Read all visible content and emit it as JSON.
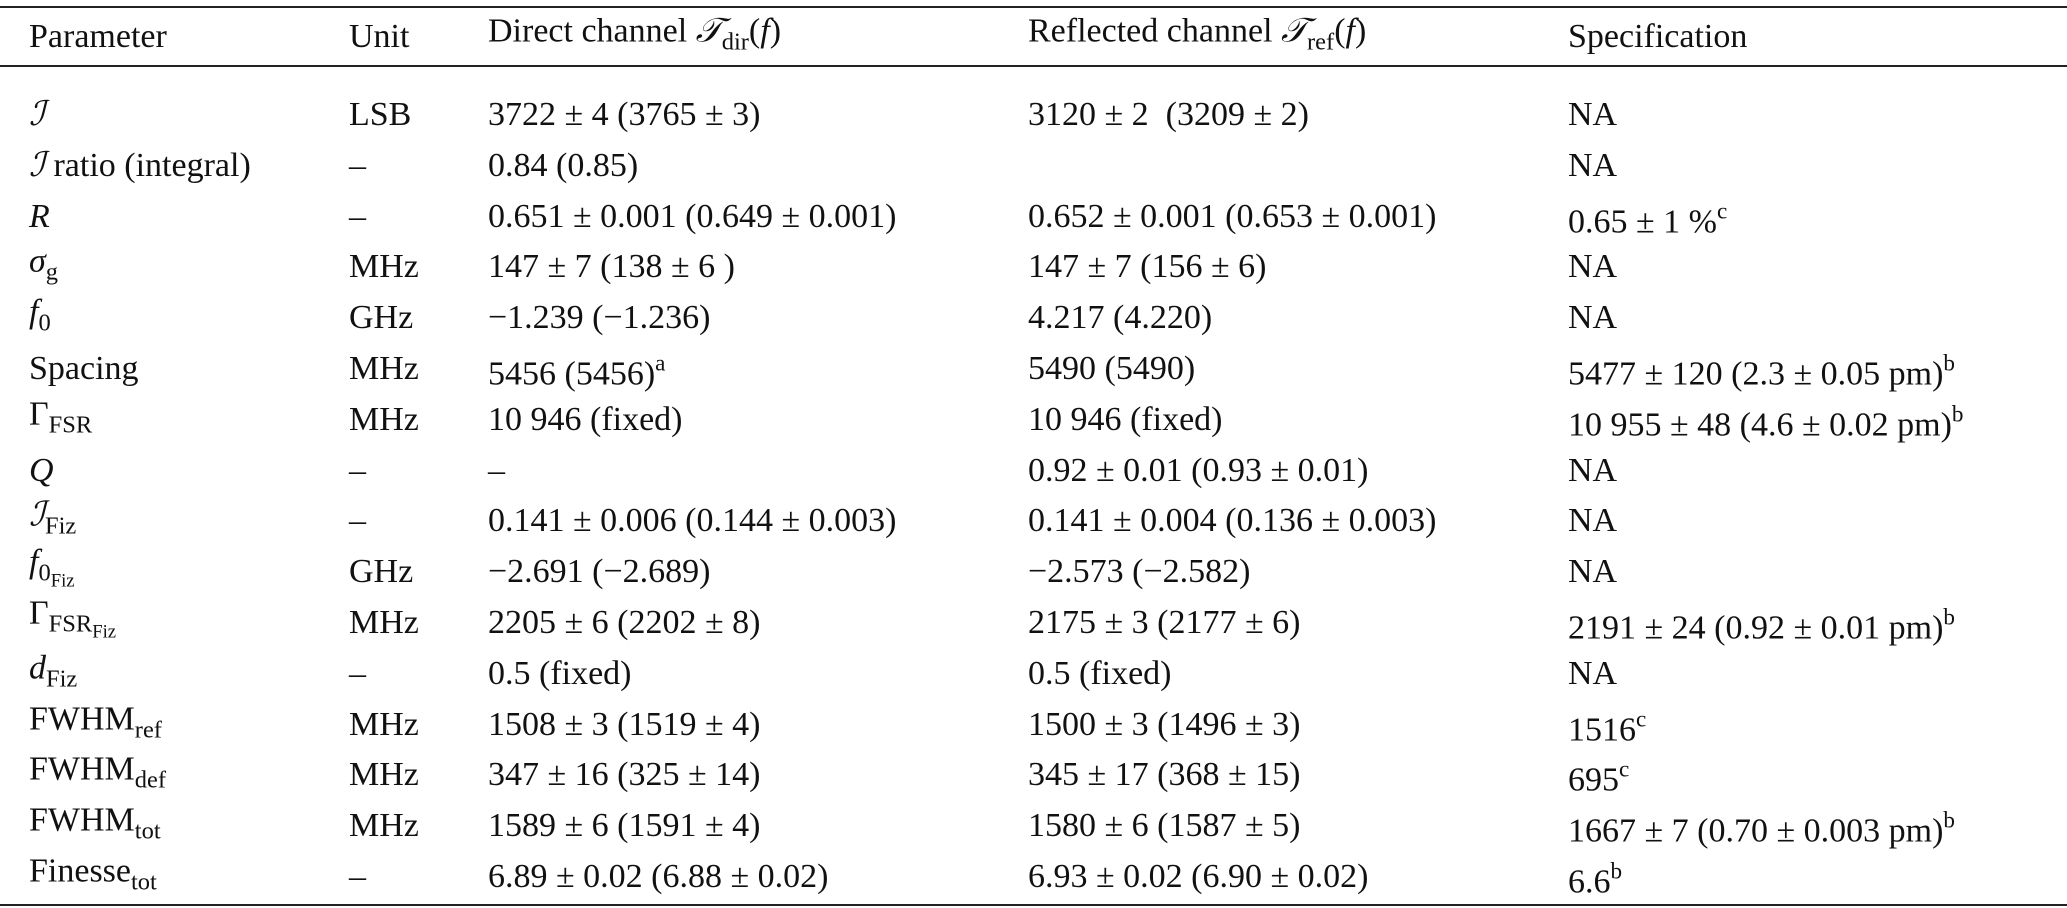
{
  "table": {
    "header": [
      "Parameter",
      "Unit",
      [
        "Direct channel ",
        {
          "i": "𝒯"
        },
        {
          "sub": "dir"
        },
        "(",
        {
          "i": "f"
        },
        ")"
      ],
      [
        "Reflected channel ",
        {
          "i": "𝒯"
        },
        {
          "sub": "ref"
        },
        "(",
        {
          "i": "f"
        },
        ")"
      ],
      "Specification"
    ],
    "rows": [
      [
        [
          {
            "i": "ℐ"
          }
        ],
        "LSB",
        "3722 ± 4 (3765 ± 3)",
        "3120 ± 2  (3209 ± 2)",
        "NA"
      ],
      [
        [
          {
            "i": "ℐ"
          },
          " ratio (integral)"
        ],
        "–",
        "0.84 (0.85)",
        null,
        "NA"
      ],
      [
        [
          {
            "i": "R"
          }
        ],
        "–",
        "0.651 ± 0.001 (0.649 ± 0.001)",
        "0.652 ± 0.001 (0.653 ± 0.001)",
        [
          "0.65 ± 1 %",
          {
            "sup": "c"
          }
        ]
      ],
      [
        [
          {
            "i": "σ"
          },
          {
            "sub": "g"
          }
        ],
        "MHz",
        "147 ± 7 (138 ± 6 )",
        "147 ± 7 (156 ± 6)",
        "NA"
      ],
      [
        [
          {
            "i": "f"
          },
          {
            "sub": "0"
          }
        ],
        "GHz",
        "−1.239 (−1.236)",
        "4.217 (4.220)",
        "NA"
      ],
      [
        "Spacing",
        "MHz",
        [
          "5456 (5456)",
          {
            "sup": "a"
          }
        ],
        "5490 (5490)",
        [
          "5477 ± 120 (2.3 ± 0.05 pm)",
          {
            "sup": "b"
          }
        ]
      ],
      [
        [
          "Γ",
          {
            "sub": "FSR"
          }
        ],
        "MHz",
        "10 946 (fixed)",
        "10 946 (fixed)",
        [
          "10 955 ± 48 (4.6 ± 0.02 pm)",
          {
            "sup": "b"
          }
        ]
      ],
      [
        [
          {
            "i": "Q"
          }
        ],
        "–",
        "–",
        "0.92 ± 0.01 (0.93 ± 0.01)",
        "NA"
      ],
      [
        [
          {
            "i": "ℐ"
          },
          {
            "sub": "Fiz"
          }
        ],
        "–",
        "0.141 ± 0.006 (0.144 ± 0.003)",
        "0.141 ± 0.004 (0.136 ± 0.003)",
        "NA"
      ],
      [
        [
          {
            "i": "f"
          },
          {
            "sub": "0"
          },
          {
            "sub2": "Fiz"
          }
        ],
        "GHz",
        "−2.691 (−2.689)",
        "−2.573 (−2.582)",
        "NA"
      ],
      [
        [
          "Γ",
          {
            "sub": "FSR"
          },
          {
            "sub2": "Fiz"
          }
        ],
        "MHz",
        "2205 ± 6 (2202 ± 8)",
        "2175 ± 3 (2177 ± 6)",
        [
          "2191 ± 24 (0.92 ± 0.01 pm)",
          {
            "sup": "b"
          }
        ]
      ],
      [
        [
          {
            "i": "d"
          },
          {
            "sub": "Fiz"
          }
        ],
        "–",
        "0.5 (fixed)",
        "0.5 (fixed)",
        "NA"
      ],
      [
        [
          "FWHM",
          {
            "sub": "ref"
          }
        ],
        "MHz",
        "1508 ± 3 (1519 ± 4)",
        "1500 ± 3 (1496 ± 3)",
        [
          "1516",
          {
            "sup": "c"
          }
        ]
      ],
      [
        [
          "FWHM",
          {
            "sub": "def"
          }
        ],
        "MHz",
        "347 ± 16 (325 ± 14)",
        "345 ± 17 (368 ± 15)",
        [
          "695",
          {
            "sup": "c"
          }
        ]
      ],
      [
        [
          "FWHM",
          {
            "sub": "tot"
          }
        ],
        "MHz",
        "1589 ± 6 (1591 ± 4)",
        "1580 ± 6 (1587 ± 5)",
        [
          "1667 ± 7 (0.70 ± 0.003 pm)",
          {
            "sup": "b"
          }
        ]
      ],
      [
        [
          "Finesse",
          {
            "sub": "tot"
          }
        ],
        "–",
        "6.89 ± 0.02 (6.88 ± 0.02)",
        "6.93 ± 0.02 (6.90 ± 0.02)",
        [
          "6.6",
          {
            "sup": "b"
          }
        ]
      ]
    ]
  }
}
